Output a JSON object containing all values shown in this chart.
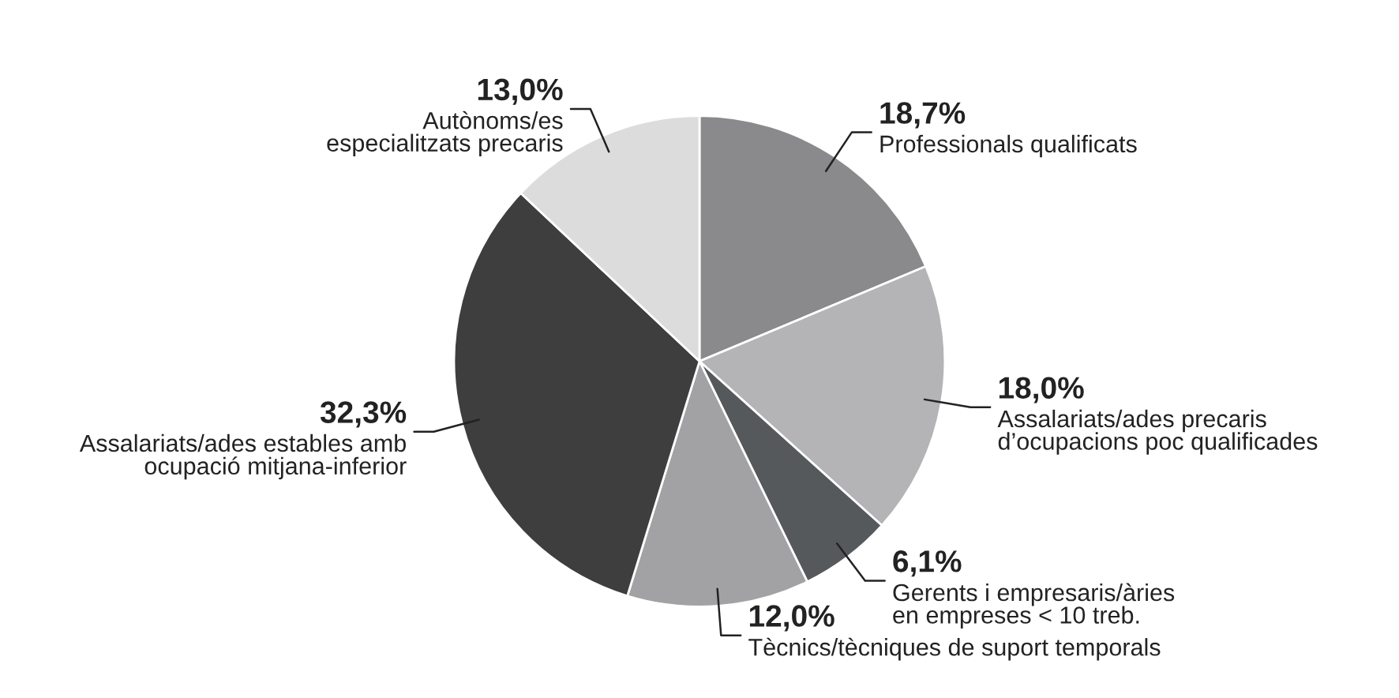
{
  "chart_data": {
    "type": "pie",
    "categories": [
      "Professionals qualificats",
      "Assalariats/ades precaris\nd’ocupacions poc qualificades",
      "Gerents i empresaris/àries\nen empreses < 10 treb.",
      "Tècnics/tècniques de suport temporals",
      "Assalariats/ades estables amb\nocupació mitjana-inferior",
      "Autònoms/es\nespecialitzats precaris"
    ],
    "values": [
      18.7,
      18.0,
      6.1,
      12.0,
      32.3,
      13.0
    ],
    "value_labels": [
      "18,7%",
      "18,0%",
      "6,1%",
      "12,0%",
      "32,3%",
      "13,0%"
    ],
    "colors": [
      "#8a8a8d",
      "#b4b4b6",
      "#56595b",
      "#a2a2a4",
      "#3e3e3e",
      "#dcdcdc"
    ]
  }
}
